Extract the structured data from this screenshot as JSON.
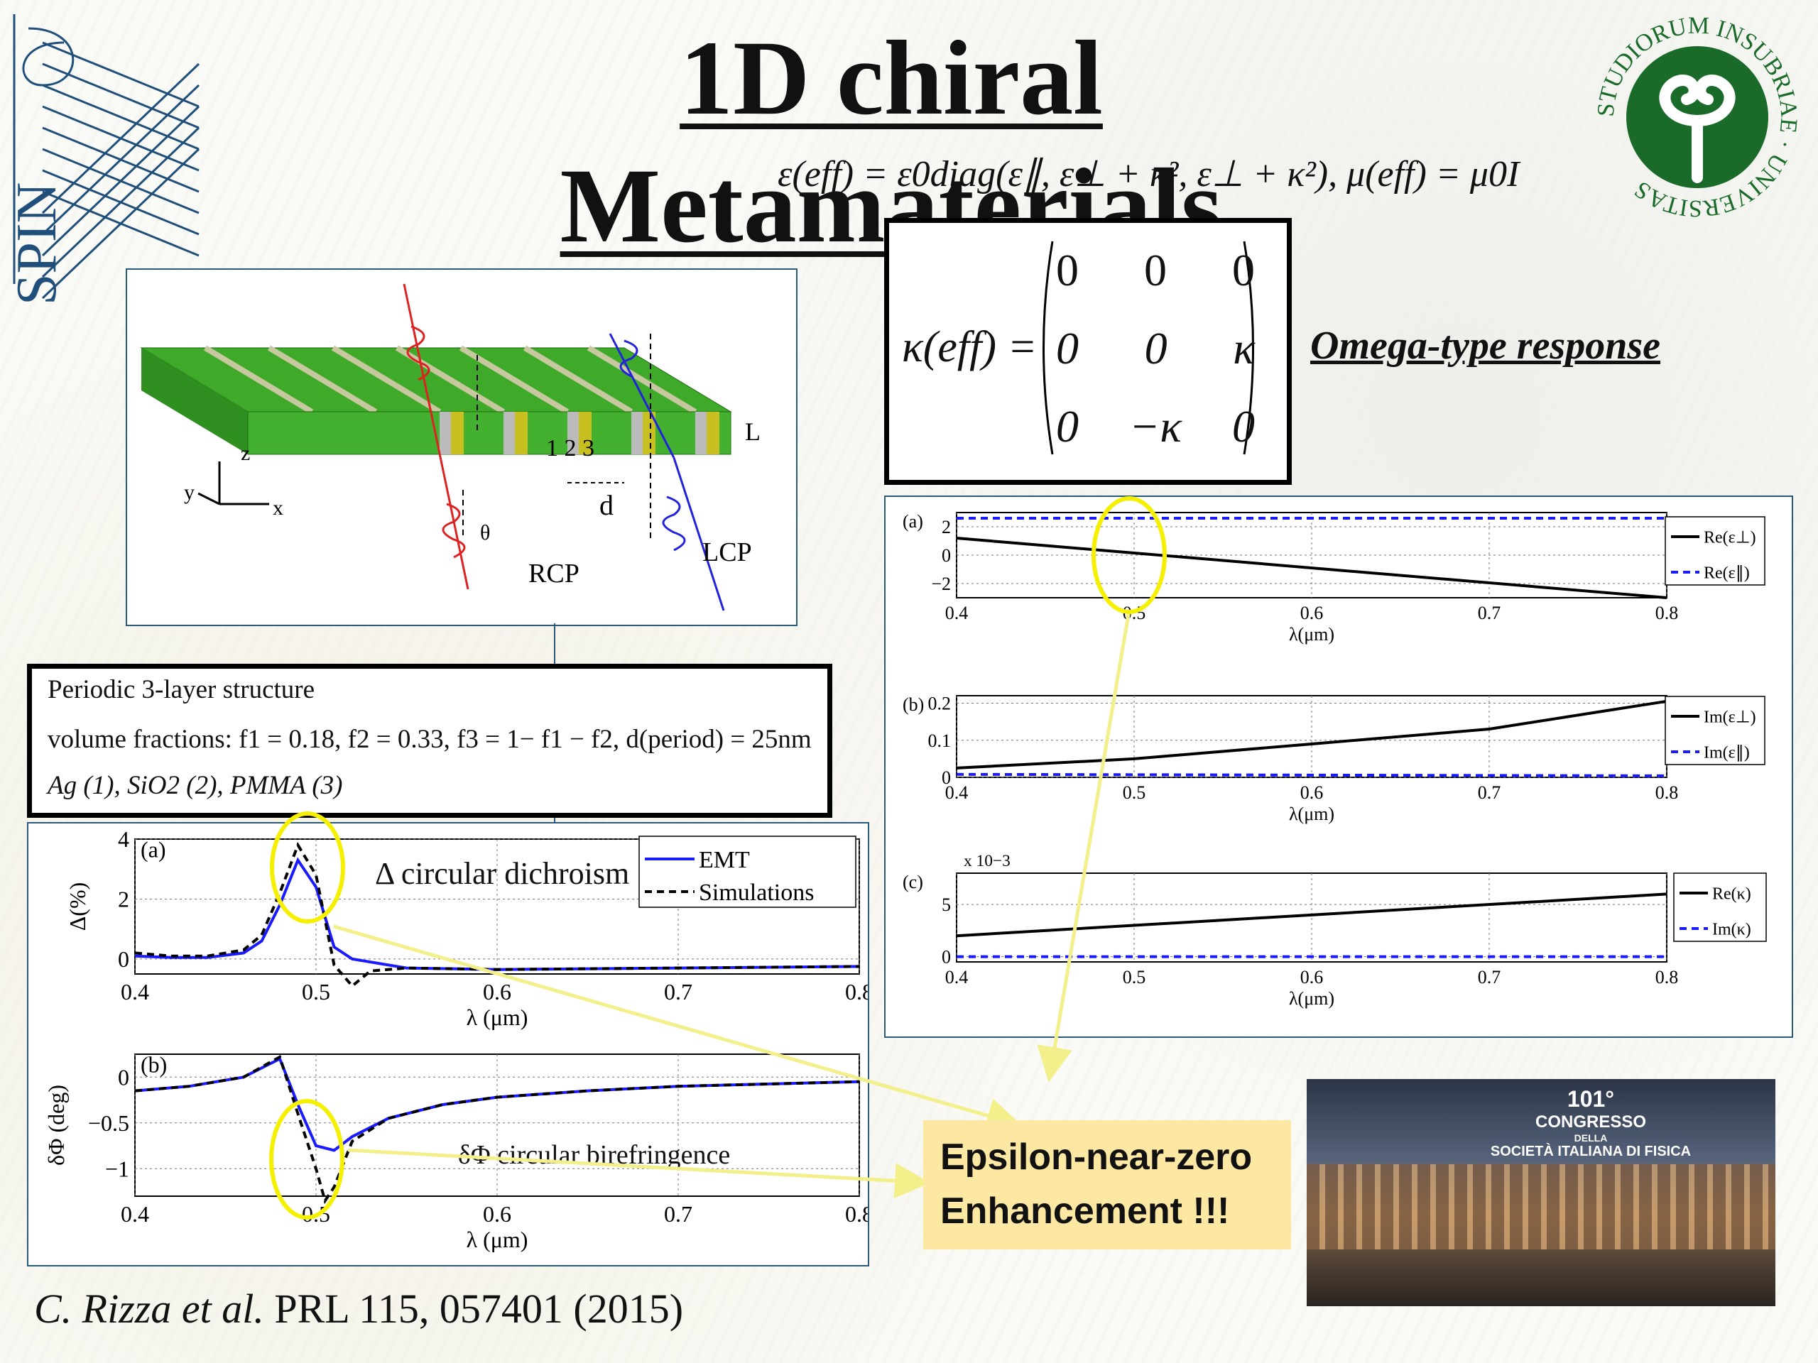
{
  "title": "1D chiral Metamaterials",
  "logo_spin": {
    "text": "SPIN",
    "color": "#1f4f7a"
  },
  "logo_university": {
    "ring_text": "STUDIORUM INSUBRIAE · UNIVERSITAS",
    "color": "#1a6b2a"
  },
  "equation_eps": "ε(eff) = ε0diag(ε∥, ε⊥ + κ², ε⊥ + κ²), μ(eff) = μ0I",
  "kappa_matrix": {
    "label": "κ(eff) =",
    "rows": [
      [
        "0",
        "0",
        "0"
      ],
      [
        "0",
        "0",
        "κ"
      ],
      [
        "0",
        "−κ",
        "0"
      ]
    ]
  },
  "omega_label": "Omega-type response",
  "schematic": {
    "labels": {
      "layers": "1 2 3",
      "L": "L",
      "d": "d",
      "theta": "θ",
      "rcp": "RCP",
      "lcp": "LCP",
      "y": "y",
      "z": "z",
      "x": "x"
    }
  },
  "structure": {
    "line1": "Periodic 3-layer structure",
    "line2": "volume fractions: f1 = 0.18, f2 = 0.33, f3 = 1− f1 − f2, d(period) = 25nm",
    "line3": "Ag (1), SiO2 (2), PMMA (3)"
  },
  "note_dichroism": "Δ circular dichroism",
  "note_birefringence": "δΦ circular birefringence",
  "enz": {
    "line1": "Epsilon-near-zero",
    "line2": "Enhancement !!!"
  },
  "citation": {
    "authors": "C. Rizza et al.",
    "rest": " PRL 115, 057401 (2015)"
  },
  "congress": {
    "line1": "101°",
    "line2": "CONGRESSO",
    "line3": "DELLA",
    "line4": "SOCIETÀ ITALIANA DI FISICA"
  },
  "colors": {
    "blue_series": "#1a1aff",
    "highlight": "#f5f000",
    "arrow": "#f3ef8a"
  },
  "chart_data": [
    {
      "type": "line",
      "panel": "(a)",
      "xlabel": "λ (μm)",
      "ylabel": "Δ(%)",
      "xlim": [
        0.4,
        0.8
      ],
      "ylim": [
        -0.5,
        4
      ],
      "xticks": [
        "0.4",
        "0.5",
        "0.6",
        "0.7",
        "0.8"
      ],
      "yticks": [
        "0",
        "2",
        "4"
      ],
      "legend": "top-right",
      "series": [
        {
          "name": "EMT",
          "x": [
            0.4,
            0.42,
            0.44,
            0.46,
            0.47,
            0.48,
            0.49,
            0.5,
            0.51,
            0.52,
            0.55,
            0.6,
            0.7,
            0.8
          ],
          "y": [
            0.1,
            0.05,
            0.05,
            0.2,
            0.6,
            1.8,
            3.3,
            2.4,
            0.4,
            0.0,
            -0.3,
            -0.35,
            -0.3,
            -0.25
          ]
        },
        {
          "name": "Simulations",
          "x": [
            0.4,
            0.42,
            0.44,
            0.46,
            0.47,
            0.48,
            0.49,
            0.5,
            0.51,
            0.52,
            0.53,
            0.55,
            0.6,
            0.7,
            0.8
          ],
          "y": [
            0.2,
            0.1,
            0.1,
            0.3,
            0.8,
            2.2,
            3.8,
            2.8,
            -0.2,
            -0.9,
            -0.4,
            -0.3,
            -0.35,
            -0.3,
            -0.25
          ]
        }
      ]
    },
    {
      "type": "line",
      "panel": "(b)",
      "xlabel": "λ (μm)",
      "ylabel": "δΦ (deg)",
      "xlim": [
        0.4,
        0.8
      ],
      "ylim": [
        -1.3,
        0.25
      ],
      "xticks": [
        "0.4",
        "0.5",
        "0.6",
        "0.7",
        "0.8"
      ],
      "yticks": [
        "0",
        "−0.5",
        "−1"
      ],
      "series": [
        {
          "name": "EMT",
          "x": [
            0.4,
            0.43,
            0.46,
            0.48,
            0.49,
            0.5,
            0.51,
            0.52,
            0.54,
            0.57,
            0.6,
            0.65,
            0.7,
            0.8
          ],
          "y": [
            -0.15,
            -0.1,
            0.0,
            0.2,
            -0.3,
            -0.75,
            -0.8,
            -0.65,
            -0.45,
            -0.3,
            -0.22,
            -0.15,
            -0.1,
            -0.05
          ]
        },
        {
          "name": "Simulations",
          "x": [
            0.4,
            0.43,
            0.46,
            0.48,
            0.49,
            0.5,
            0.505,
            0.51,
            0.52,
            0.54,
            0.57,
            0.6,
            0.65,
            0.7,
            0.8
          ],
          "y": [
            -0.15,
            -0.1,
            0.0,
            0.22,
            -0.4,
            -1.0,
            -1.35,
            -1.2,
            -0.7,
            -0.45,
            -0.3,
            -0.22,
            -0.15,
            -0.1,
            -0.05
          ]
        }
      ]
    },
    {
      "type": "line",
      "panel": "(a)",
      "xlabel": "λ(μm)",
      "xlim": [
        0.4,
        0.8
      ],
      "ylim": [
        -3,
        3
      ],
      "xticks": [
        "0.4",
        "0.5",
        "0.6",
        "0.7",
        "0.8"
      ],
      "yticks": [
        "2",
        "0",
        "−2"
      ],
      "legend": "right",
      "series": [
        {
          "name": "Re(ε⊥)",
          "x": [
            0.4,
            0.8
          ],
          "y": [
            1.2,
            -3.0
          ]
        },
        {
          "name": "Re(ε∥)",
          "x": [
            0.4,
            0.8
          ],
          "y": [
            2.6,
            2.6
          ]
        }
      ]
    },
    {
      "type": "line",
      "panel": "(b)",
      "xlabel": "λ(μm)",
      "xlim": [
        0.4,
        0.8
      ],
      "ylim": [
        0,
        0.22
      ],
      "xticks": [
        "0.4",
        "0.5",
        "0.6",
        "0.7",
        "0.8"
      ],
      "yticks": [
        "0.2",
        "0.1",
        "0"
      ],
      "legend": "right",
      "series": [
        {
          "name": "Im(ε⊥)",
          "x": [
            0.4,
            0.5,
            0.6,
            0.7,
            0.8
          ],
          "y": [
            0.025,
            0.05,
            0.09,
            0.13,
            0.205
          ]
        },
        {
          "name": "Im(ε∥)",
          "x": [
            0.4,
            0.8
          ],
          "y": [
            0.008,
            0.004
          ]
        }
      ]
    },
    {
      "type": "line",
      "panel": "(c)",
      "xlabel": "λ(μm)",
      "multiplier": "x 10−3",
      "xlim": [
        0.4,
        0.8
      ],
      "ylim": [
        -0.5,
        8
      ],
      "xticks": [
        "0.4",
        "0.5",
        "0.6",
        "0.7",
        "0.8"
      ],
      "yticks": [
        "5",
        "0"
      ],
      "legend": "right",
      "series": [
        {
          "name": "Re(κ)",
          "x": [
            0.4,
            0.8
          ],
          "y": [
            2.0,
            6.0
          ]
        },
        {
          "name": "Im(κ)",
          "x": [
            0.4,
            0.8
          ],
          "y": [
            0.0,
            0.0
          ]
        }
      ]
    }
  ]
}
